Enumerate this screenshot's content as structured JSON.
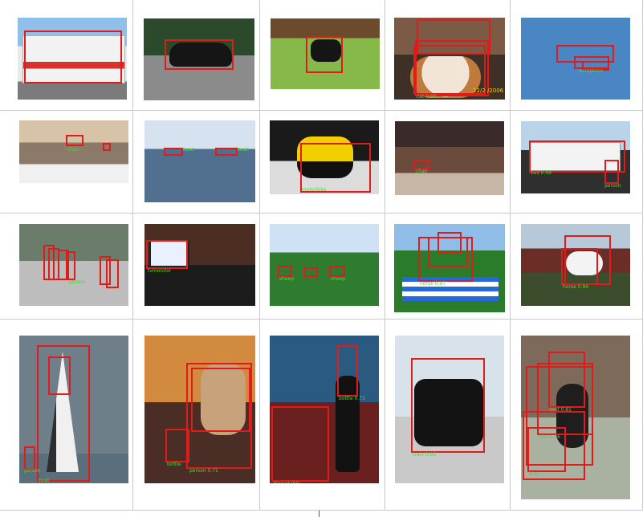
{
  "grid": {
    "rows": 4,
    "cols": 5,
    "cells": [
      {
        "subject": "bus",
        "boxes": 1,
        "labels": []
      },
      {
        "subject": "car",
        "boxes": 1,
        "labels": []
      },
      {
        "subject": "dog",
        "boxes": 1,
        "labels": []
      },
      {
        "subject": "cat",
        "boxes": 3,
        "labels": [
          "12/2 /2006",
          "cat 0.93"
        ]
      },
      {
        "subject": "aeroplane",
        "boxes": 3,
        "labels": [
          "aeroplane"
        ]
      },
      {
        "subject": "room",
        "boxes": 2,
        "labels": [
          "chair"
        ]
      },
      {
        "subject": "boat",
        "boxes": 2,
        "labels": [
          "boat",
          "boat"
        ]
      },
      {
        "subject": "motorbike",
        "boxes": 2,
        "labels": [
          "motorbike"
        ]
      },
      {
        "subject": "barn",
        "boxes": 1,
        "labels": [
          "chair"
        ]
      },
      {
        "subject": "bus",
        "boxes": 2,
        "labels": [
          "bus 0.99",
          "person"
        ]
      },
      {
        "subject": "people",
        "boxes": 6,
        "labels": [
          "person"
        ]
      },
      {
        "subject": "tv",
        "boxes": 1,
        "labels": [
          "tvmonitor"
        ]
      },
      {
        "subject": "sheep",
        "boxes": 3,
        "labels": [
          "sheep",
          "sheep"
        ]
      },
      {
        "subject": "horse",
        "boxes": 3,
        "labels": [
          "horse 0.97"
        ]
      },
      {
        "subject": "horse",
        "boxes": 2,
        "labels": [
          "horse 0.96"
        ]
      },
      {
        "subject": "boat",
        "boxes": 3,
        "labels": [
          "boat",
          "person"
        ]
      },
      {
        "subject": "person",
        "boxes": 3,
        "labels": [
          "person 0.71",
          "bottle"
        ]
      },
      {
        "subject": "bottle",
        "boxes": 2,
        "labels": [
          "bottle 0.73",
          "diningtable"
        ]
      },
      {
        "subject": "train",
        "boxes": 1,
        "labels": [
          "train 0.85"
        ]
      },
      {
        "subject": "bird",
        "boxes": 5,
        "labels": [
          "bird 0.81",
          "bird 0.56",
          "bird"
        ]
      }
    ]
  },
  "colors": {
    "box": "#e11a1a",
    "label": "#3fdc3f",
    "gridline": "#c9c9c9"
  }
}
